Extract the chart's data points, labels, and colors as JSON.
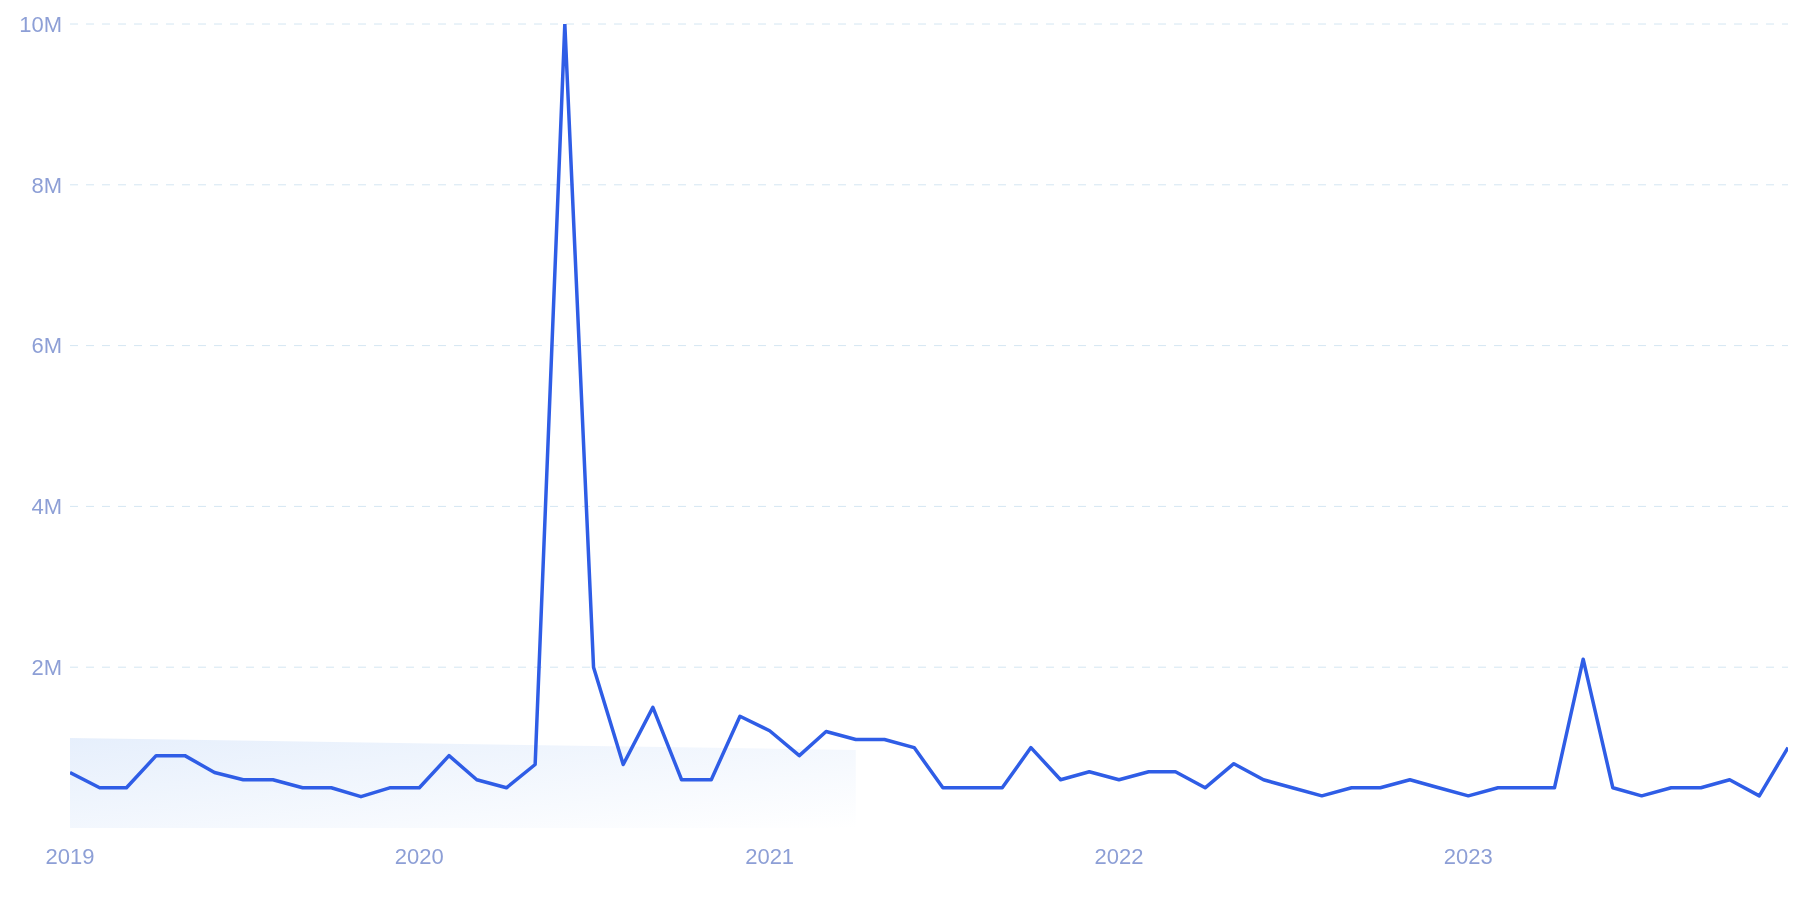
{
  "chart_data": {
    "type": "line",
    "xlim": [
      "2019-01",
      "2023-12"
    ],
    "xticks": [
      "2019",
      "2020",
      "2021",
      "2022",
      "2023"
    ],
    "ylim": [
      0,
      10000000
    ],
    "yticks": [
      {
        "value": 2000000,
        "label": "2M"
      },
      {
        "value": 4000000,
        "label": "4M"
      },
      {
        "value": 6000000,
        "label": "6M"
      },
      {
        "value": 8000000,
        "label": "8M"
      },
      {
        "value": 10000000,
        "label": "10M"
      }
    ],
    "grid": "y",
    "marker": "none",
    "line_style": "solid",
    "x": [
      "2019-01",
      "2019-02",
      "2019-03",
      "2019-04",
      "2019-05",
      "2019-06",
      "2019-07",
      "2019-08",
      "2019-09",
      "2019-10",
      "2019-11",
      "2019-12",
      "2020-01",
      "2020-02",
      "2020-03",
      "2020-04",
      "2020-05",
      "2020-06",
      "2020-07",
      "2020-08",
      "2020-09",
      "2020-10",
      "2020-11",
      "2020-12",
      "2021-01",
      "2021-02",
      "2021-03",
      "2021-04",
      "2021-05",
      "2021-06",
      "2021-07",
      "2021-08",
      "2021-09",
      "2021-10",
      "2021-11",
      "2021-12",
      "2022-01",
      "2022-02",
      "2022-03",
      "2022-04",
      "2022-05",
      "2022-06",
      "2022-07",
      "2022-08",
      "2022-09",
      "2022-10",
      "2022-11",
      "2022-12",
      "2023-01",
      "2023-02",
      "2023-03",
      "2023-04",
      "2023-05",
      "2023-06",
      "2023-07",
      "2023-08",
      "2023-09",
      "2023-10",
      "2023-11",
      "2023-12"
    ],
    "series": [
      {
        "type": "area",
        "color": "#e6effc",
        "x": [
          "2019-01",
          "2021-04"
        ],
        "values": [
          1120000,
          970000
        ]
      },
      {
        "color": "#2f5de6",
        "values": [
          690000,
          500000,
          500000,
          900000,
          900000,
          690000,
          600000,
          600000,
          500000,
          500000,
          390000,
          500000,
          500000,
          900000,
          600000,
          500000,
          790000,
          10000000,
          2000000,
          790000,
          1500000,
          600000,
          600000,
          1390000,
          1210000,
          900000,
          1200000,
          1100000,
          1100000,
          1000000,
          500000,
          500000,
          500000,
          1000000,
          600000,
          700000,
          600000,
          700000,
          700000,
          500000,
          800000,
          600000,
          500000,
          400000,
          500000,
          500000,
          600000,
          500000,
          400000,
          500000,
          500000,
          500000,
          2100000,
          500000,
          400000,
          500000,
          500000,
          600000,
          400000,
          1000000
        ]
      }
    ]
  }
}
